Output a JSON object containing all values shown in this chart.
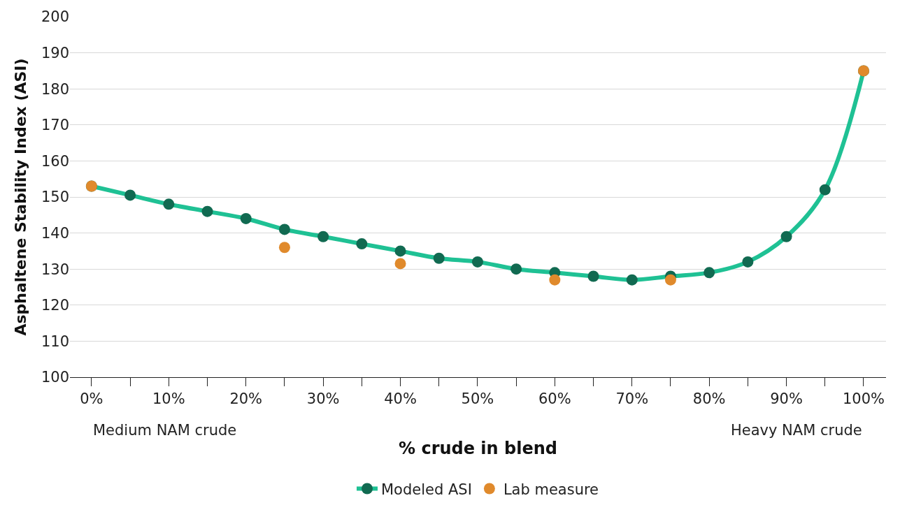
{
  "chart_data": {
    "type": "line",
    "xlabel": "% crude in blend",
    "ylabel": "Asphaltene Stability Index (ASI)",
    "x": [
      0,
      5,
      10,
      15,
      20,
      25,
      30,
      35,
      40,
      45,
      50,
      55,
      60,
      65,
      70,
      75,
      80,
      85,
      90,
      95,
      100
    ],
    "series": [
      {
        "name": "Modeled ASI",
        "color": "#1fc194",
        "marker": "circle",
        "values": [
          153,
          150.5,
          148,
          146,
          144,
          141,
          139,
          137,
          135,
          133,
          132,
          130,
          129,
          128,
          127,
          128,
          129,
          132,
          139,
          152,
          185
        ]
      },
      {
        "name": "Lab measure",
        "type": "scatter",
        "color": "#e08a2c",
        "marker": "circle",
        "x": [
          0,
          25,
          40,
          60,
          75,
          100
        ],
        "values": [
          153,
          136,
          131.5,
          127,
          127,
          185
        ]
      }
    ],
    "xlim": [
      -2.8,
      102.9
    ],
    "xticks": [
      {
        "value": 0,
        "label": "0%"
      },
      {
        "value": 5,
        "label": null
      },
      {
        "value": 10,
        "label": "10%"
      },
      {
        "value": 15,
        "label": null
      },
      {
        "value": 20,
        "label": "20%"
      },
      {
        "value": 25,
        "label": null
      },
      {
        "value": 30,
        "label": "30%"
      },
      {
        "value": 35,
        "label": null
      },
      {
        "value": 40,
        "label": "40%"
      },
      {
        "value": 45,
        "label": null
      },
      {
        "value": 50,
        "label": "50%"
      },
      {
        "value": 55,
        "label": null
      },
      {
        "value": 60,
        "label": "60%"
      },
      {
        "value": 65,
        "label": null
      },
      {
        "value": 70,
        "label": "70%"
      },
      {
        "value": 75,
        "label": null
      },
      {
        "value": 80,
        "label": "80%"
      },
      {
        "value": 85,
        "label": null
      },
      {
        "value": 90,
        "label": "90%"
      },
      {
        "value": 95,
        "label": null
      },
      {
        "value": 100,
        "label": "100%"
      }
    ],
    "ylim": [
      100,
      200
    ],
    "yticks": [
      100,
      110,
      120,
      130,
      140,
      150,
      160,
      170,
      180,
      190,
      200
    ],
    "annotations": [
      "Medium NAM crude",
      "Heavy NAM crude"
    ],
    "grid": "y",
    "legend": "bottom"
  }
}
